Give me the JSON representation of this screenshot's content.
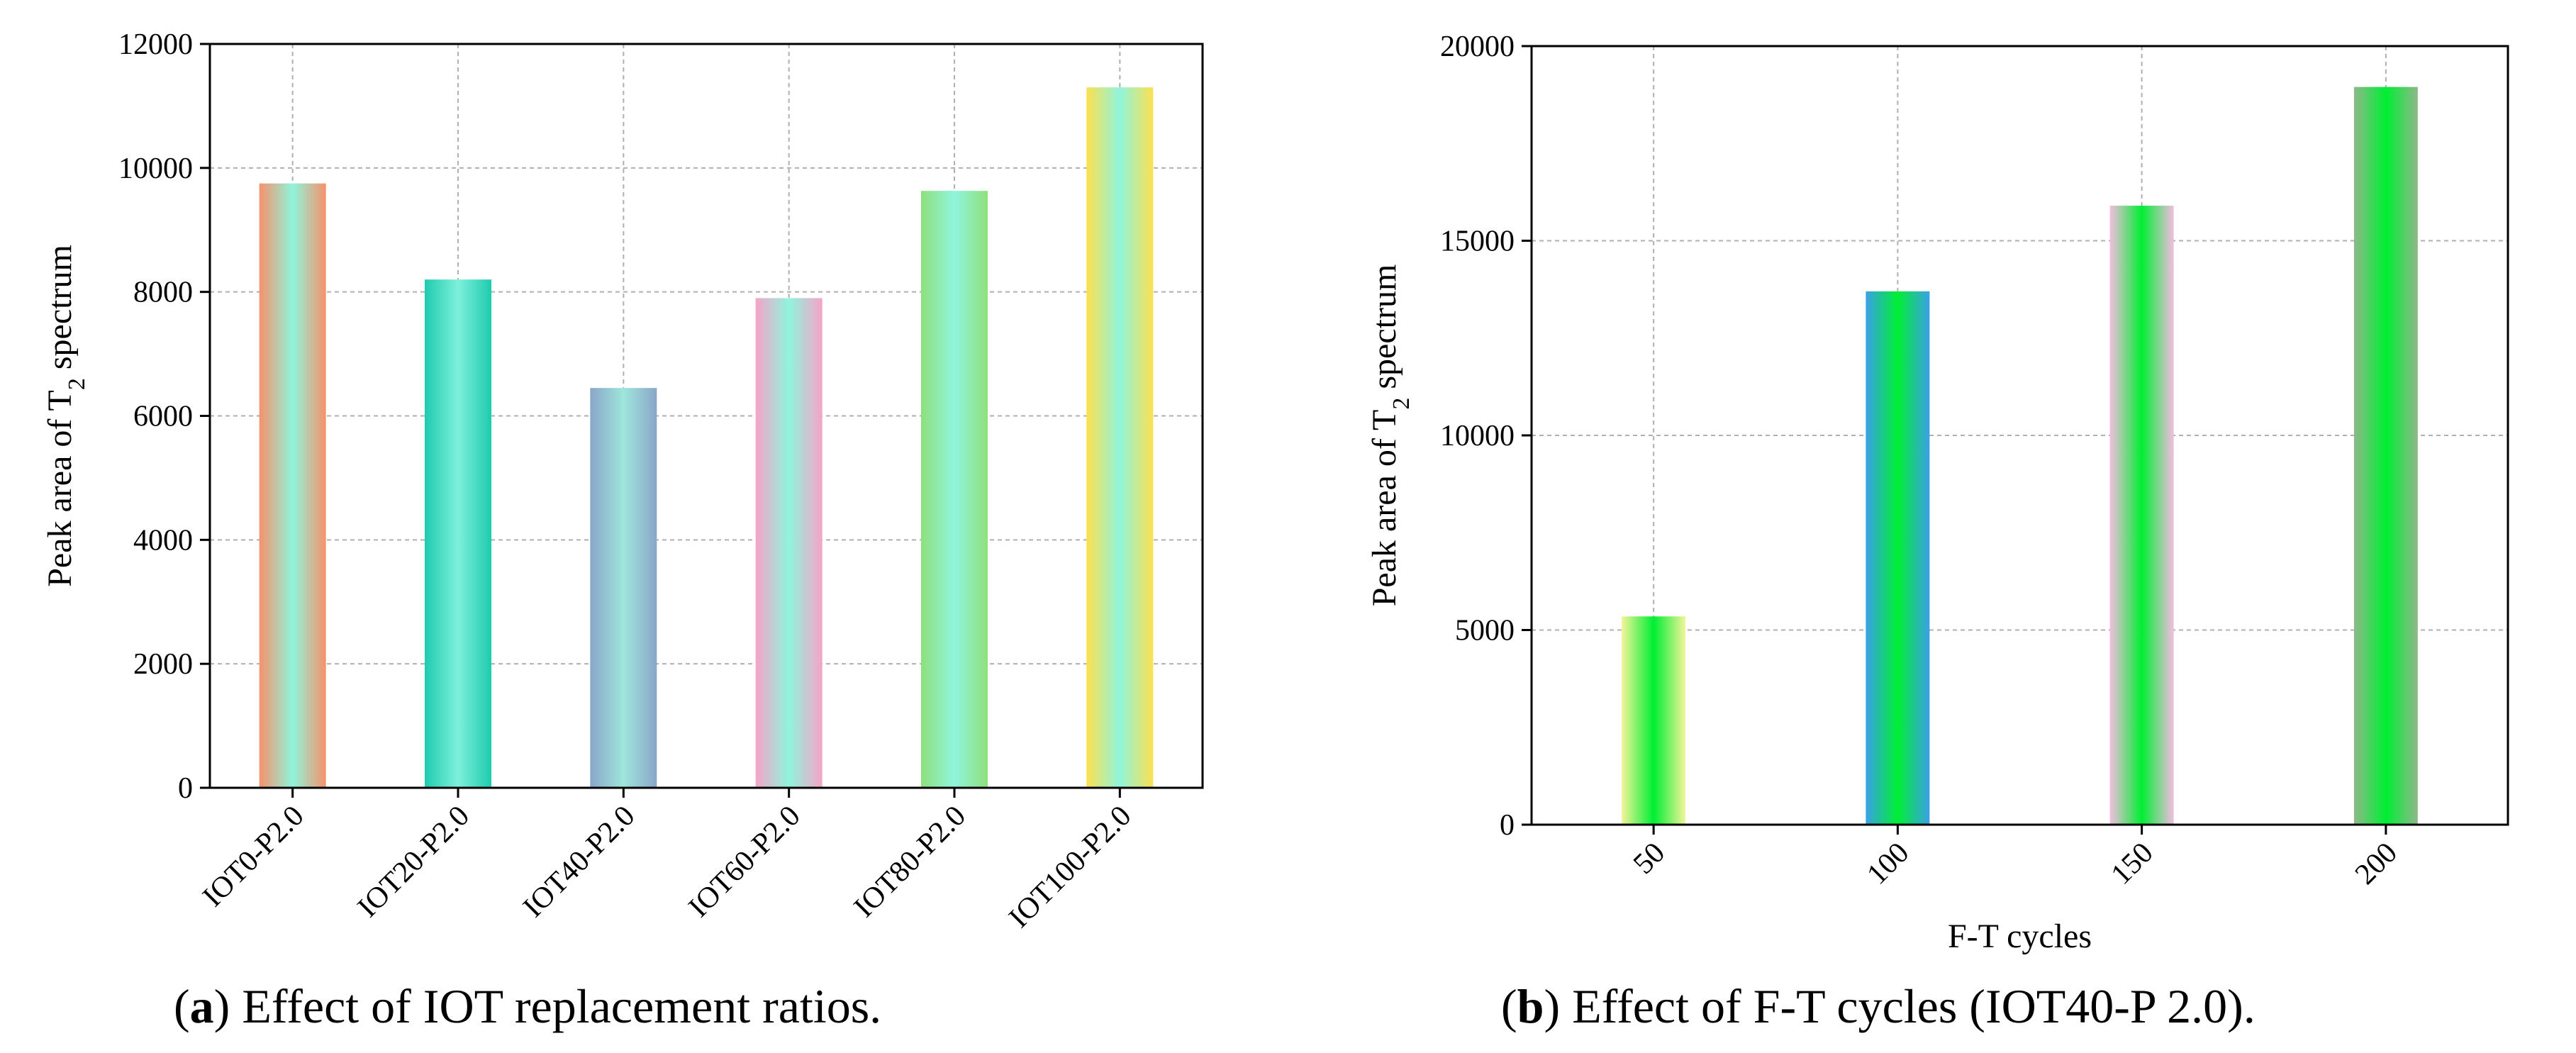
{
  "chart_data": [
    {
      "type": "bar",
      "panel": "a",
      "caption_letter": "a",
      "caption_text": " Effect of IOT replacement ratios.",
      "categories": [
        "IOT0-P2.0",
        "IOT20-P2.0",
        "IOT40-P2.0",
        "IOT60-P2.0",
        "IOT80-P2.0",
        "IOT100-P2.0"
      ],
      "values": [
        9750,
        8200,
        6450,
        7900,
        9630,
        11300
      ],
      "ylabel_main": "Peak area of T",
      "ylabel_sub": "2",
      "ylabel_tail": " spectrum",
      "xlabel": "",
      "ylim": [
        0,
        12000
      ],
      "yticks": [
        0,
        2000,
        4000,
        6000,
        8000,
        10000,
        12000
      ],
      "grid": true,
      "bar_colors": [
        [
          "#f7916a",
          "#8ff5dc",
          "#f7916a"
        ],
        [
          "#1ecbb0",
          "#7ef0da",
          "#1ecbb0"
        ],
        [
          "#8aa6c9",
          "#9ee6dc",
          "#8aa6c9"
        ],
        [
          "#f6a3c8",
          "#8ff5dc",
          "#f6a3c8"
        ],
        [
          "#8fe07c",
          "#8ff5dc",
          "#8fe07c"
        ],
        [
          "#fde050",
          "#8ff5dc",
          "#fde050"
        ]
      ]
    },
    {
      "type": "bar",
      "panel": "b",
      "caption_letter": "b",
      "caption_text": " Effect of F-T cycles (IOT40-P 2.0).",
      "categories": [
        "50",
        "100",
        "150",
        "200"
      ],
      "values": [
        5350,
        13700,
        15900,
        18950
      ],
      "ylabel_main": "Peak area of T",
      "ylabel_sub": "2",
      "ylabel_tail": " spectrum",
      "xlabel": "F-T cycles",
      "ylim": [
        0,
        20000
      ],
      "yticks": [
        0,
        5000,
        10000,
        15000,
        20000
      ],
      "grid": true,
      "bar_colors": [
        [
          "#f4f59a",
          "#00ee33",
          "#f4f59a"
        ],
        [
          "#3aa0e8",
          "#00ee33",
          "#3aa0e8"
        ],
        [
          "#f3bde0",
          "#00ee33",
          "#f3bde0"
        ],
        [
          "#8fb88a",
          "#00ee33",
          "#8fb88a"
        ]
      ]
    }
  ]
}
